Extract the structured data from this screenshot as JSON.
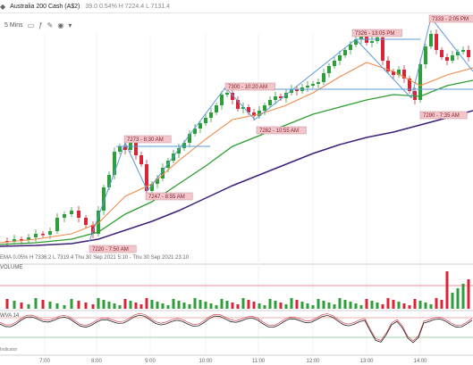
{
  "header": {
    "symbol": "Australia 200 Cash (A$2)",
    "stats": "39.0 0.54% H 7224.4 L 7131.4"
  },
  "toolbar": {
    "interval": "5 Mins"
  },
  "legend": {
    "ema_label": "EMA",
    "ohlc_text": "0.05%   H 7336.2   L 7319.4   Thu 30 Sep 2021 5:10 - Thu 30 Sep 2021 23:10"
  },
  "annotations": [
    {
      "text": "7220 - 7:50 AM"
    },
    {
      "text": "7273 - 8:30 AM"
    },
    {
      "text": "7247 - 8:55 AM"
    },
    {
      "text": "7300 - 10:20 AM"
    },
    {
      "text": "7282 - 10:55 AM"
    },
    {
      "text": "7326 - 13:05 PM"
    },
    {
      "text": "7333 - 2:05 PM"
    },
    {
      "text": "7290 - 7:35 AM"
    }
  ],
  "volume_pane": {
    "label": "VOLUME"
  },
  "indicator_pane": {
    "label": "WVA",
    "value": "14",
    "sub_label": "Indicator"
  },
  "time_axis": [
    "7:00",
    "8:00",
    "9:00",
    "10:00",
    "11:00",
    "12:00",
    "13:00",
    "14:00"
  ],
  "colors": {
    "up": "#2e9e3a",
    "down": "#d72638",
    "ema_fast": "#f08a4b",
    "ema_mid": "#2f9e2f",
    "ema_slow": "#3d1f78",
    "trend": "#5b9bd5",
    "tag_bg": "#f1c7cc"
  }
}
